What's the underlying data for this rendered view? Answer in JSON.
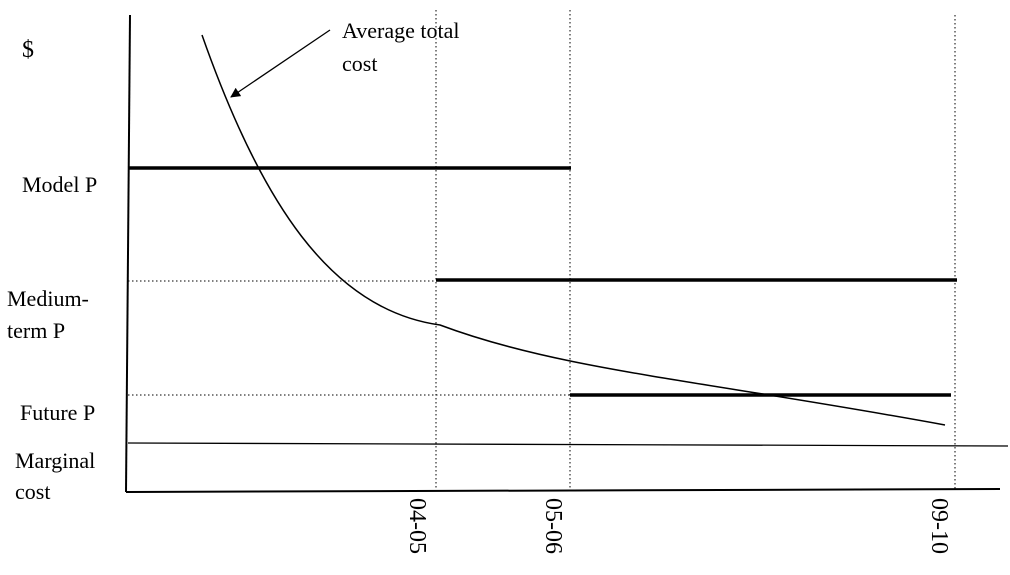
{
  "y_axis_symbol": "$",
  "labels": {
    "average_total_cost": [
      "Average total",
      "cost"
    ],
    "model_price": "Model P",
    "medium_term_price": [
      "Medium-",
      "term P"
    ],
    "future_price": "Future P",
    "marginal_cost": [
      "Marginal",
      "cost"
    ]
  },
  "x_ticks": [
    "04-05",
    "05-06",
    "09-10"
  ]
}
